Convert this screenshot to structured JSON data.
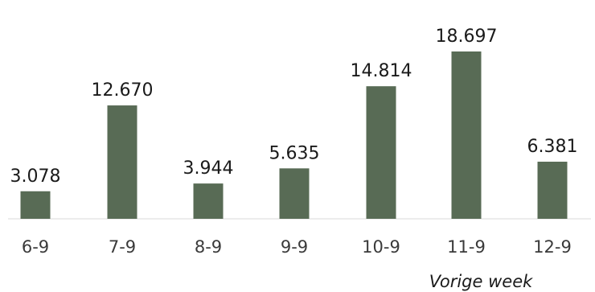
{
  "chart_data": {
    "type": "bar",
    "categories": [
      "6-9",
      "7-9",
      "8-9",
      "9-9",
      "10-9",
      "11-9",
      "12-9"
    ],
    "values": [
      3078,
      12670,
      3944,
      5635,
      14814,
      18697,
      6381
    ],
    "value_labels": [
      "3.078",
      "12.670",
      "3.944",
      "5.635",
      "14.814",
      "18.697",
      "6.381"
    ],
    "title": "",
    "xlabel": "",
    "ylabel": "",
    "ylim": [
      0,
      20000
    ],
    "grid": false,
    "legend": "none",
    "annotation": "Vorige week",
    "bar_color": "#586b55",
    "axis_color": "#d9d9d9"
  }
}
